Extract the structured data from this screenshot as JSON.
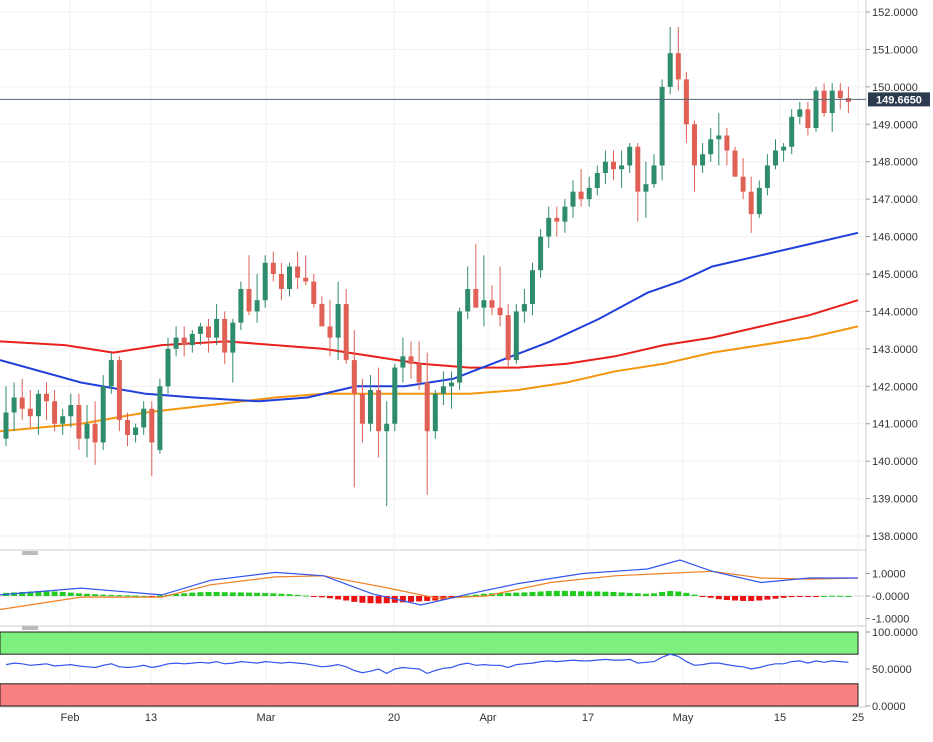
{
  "chart_data": [
    {
      "type": "candlestick",
      "pair_price_tag": "149.6650",
      "last_price": 149.665,
      "y_ticks": [
        "152.0000",
        "151.0000",
        "150.0000",
        "149.0000",
        "148.0000",
        "147.0000",
        "146.0000",
        "145.0000",
        "144.0000",
        "143.0000",
        "142.0000",
        "141.0000",
        "140.0000",
        "139.0000",
        "138.0000"
      ],
      "ylim": [
        137.6,
        152.2
      ],
      "x_ticks": [
        "Feb",
        "13",
        "Mar",
        "20",
        "Apr",
        "17",
        "May",
        "15",
        "25"
      ],
      "colors": {
        "up": "#2e8b6b",
        "down": "#e06055",
        "ma_blue": "#1f3fdc",
        "ma_red": "#e8201c",
        "ma_orange": "#f5960f"
      },
      "candles": [
        [
          140.6,
          142.0,
          140.4,
          141.3
        ],
        [
          141.3,
          142.1,
          140.8,
          141.7
        ],
        [
          141.7,
          142.2,
          141.1,
          141.4
        ],
        [
          141.4,
          141.9,
          140.9,
          141.2
        ],
        [
          141.2,
          141.9,
          140.7,
          141.8
        ],
        [
          141.8,
          142.1,
          141.1,
          141.6
        ],
        [
          141.6,
          141.9,
          140.8,
          141.0
        ],
        [
          141.0,
          141.4,
          140.7,
          141.2
        ],
        [
          141.2,
          141.8,
          140.9,
          141.5
        ],
        [
          141.5,
          141.8,
          140.3,
          140.6
        ],
        [
          140.6,
          141.5,
          140.1,
          141.0
        ],
        [
          141.0,
          141.6,
          139.9,
          140.5
        ],
        [
          140.5,
          142.3,
          140.3,
          142.0
        ],
        [
          142.0,
          142.9,
          141.8,
          142.7
        ],
        [
          142.7,
          142.8,
          140.8,
          141.1
        ],
        [
          141.1,
          141.3,
          140.4,
          140.7
        ],
        [
          140.7,
          141.0,
          140.5,
          140.9
        ],
        [
          140.9,
          141.6,
          140.7,
          141.4
        ],
        [
          141.4,
          141.6,
          139.6,
          140.5
        ],
        [
          140.3,
          142.2,
          140.2,
          142.0
        ],
        [
          142.0,
          143.3,
          141.8,
          143.0
        ],
        [
          143.0,
          143.6,
          142.8,
          143.3
        ],
        [
          143.3,
          143.6,
          142.8,
          143.1
        ],
        [
          143.1,
          143.5,
          142.9,
          143.4
        ],
        [
          143.4,
          143.7,
          143.1,
          143.6
        ],
        [
          143.6,
          143.8,
          142.9,
          143.3
        ],
        [
          143.3,
          144.2,
          143.1,
          143.8
        ],
        [
          143.8,
          144.0,
          142.6,
          142.9
        ],
        [
          142.9,
          143.8,
          142.1,
          143.7
        ],
        [
          143.7,
          144.8,
          143.5,
          144.6
        ],
        [
          144.6,
          145.5,
          143.9,
          144.0
        ],
        [
          144.0,
          145.0,
          143.7,
          144.3
        ],
        [
          144.3,
          145.5,
          144.1,
          145.3
        ],
        [
          145.3,
          145.6,
          144.8,
          145.0
        ],
        [
          145.0,
          145.3,
          144.3,
          144.6
        ],
        [
          144.6,
          145.3,
          144.4,
          145.2
        ],
        [
          145.2,
          145.6,
          144.6,
          144.9
        ],
        [
          144.9,
          145.5,
          144.7,
          144.8
        ],
        [
          144.8,
          145.0,
          144.1,
          144.2
        ],
        [
          144.2,
          144.4,
          143.7,
          143.6
        ],
        [
          143.6,
          144.3,
          142.8,
          143.3
        ],
        [
          143.3,
          144.8,
          142.7,
          144.2
        ],
        [
          144.2,
          144.6,
          142.6,
          142.7
        ],
        [
          142.7,
          143.5,
          139.3,
          141.8
        ],
        [
          141.8,
          142.2,
          140.5,
          141.0
        ],
        [
          141.0,
          142.3,
          140.8,
          141.9
        ],
        [
          141.9,
          142.5,
          140.1,
          140.8
        ],
        [
          140.8,
          141.6,
          138.8,
          141.0
        ],
        [
          141.0,
          142.6,
          140.8,
          142.5
        ],
        [
          142.5,
          143.3,
          142.1,
          142.8
        ],
        [
          142.8,
          143.2,
          142.2,
          142.6
        ],
        [
          142.6,
          143.2,
          141.9,
          142.1
        ],
        [
          142.1,
          142.9,
          139.1,
          140.8
        ],
        [
          140.8,
          141.9,
          140.6,
          141.8
        ],
        [
          141.8,
          142.4,
          141.5,
          142.0
        ],
        [
          142.0,
          142.4,
          141.4,
          142.1
        ],
        [
          142.1,
          144.1,
          141.9,
          144.0
        ],
        [
          144.0,
          145.2,
          143.8,
          144.6
        ],
        [
          144.6,
          145.8,
          144.2,
          144.1
        ],
        [
          144.1,
          145.5,
          143.6,
          144.3
        ],
        [
          144.3,
          144.7,
          143.9,
          144.1
        ],
        [
          144.1,
          145.2,
          143.6,
          143.9
        ],
        [
          143.9,
          144.2,
          142.5,
          142.7
        ],
        [
          142.7,
          144.2,
          142.6,
          144.0
        ],
        [
          144.0,
          144.6,
          143.7,
          144.2
        ],
        [
          144.2,
          145.3,
          143.9,
          145.1
        ],
        [
          145.1,
          146.2,
          144.9,
          146.0
        ],
        [
          146.0,
          146.8,
          145.7,
          146.5
        ],
        [
          146.5,
          146.8,
          146.0,
          146.4
        ],
        [
          146.4,
          147.0,
          146.1,
          146.8
        ],
        [
          146.8,
          147.5,
          146.5,
          147.2
        ],
        [
          147.2,
          147.8,
          146.8,
          147.0
        ],
        [
          147.0,
          147.6,
          146.8,
          147.3
        ],
        [
          147.3,
          147.9,
          147.1,
          147.7
        ],
        [
          147.7,
          148.3,
          147.4,
          148.0
        ],
        [
          148.0,
          148.3,
          147.5,
          147.8
        ],
        [
          147.8,
          148.3,
          147.3,
          147.9
        ],
        [
          147.9,
          148.5,
          147.7,
          148.4
        ],
        [
          148.4,
          148.5,
          146.4,
          147.2
        ],
        [
          147.2,
          148.0,
          146.5,
          147.4
        ],
        [
          147.4,
          148.2,
          147.3,
          147.9
        ],
        [
          147.9,
          150.2,
          147.5,
          150.0
        ],
        [
          150.0,
          151.6,
          149.8,
          150.9
        ],
        [
          150.9,
          151.6,
          149.9,
          150.2
        ],
        [
          150.2,
          150.4,
          148.5,
          149.0
        ],
        [
          149.0,
          149.1,
          147.2,
          147.9
        ],
        [
          147.9,
          148.5,
          147.7,
          148.2
        ],
        [
          148.2,
          148.9,
          148.0,
          148.6
        ],
        [
          148.6,
          149.3,
          147.9,
          148.7
        ],
        [
          148.7,
          148.9,
          147.9,
          148.3
        ],
        [
          148.3,
          148.4,
          147.6,
          147.6
        ],
        [
          147.6,
          148.1,
          147.0,
          147.2
        ],
        [
          147.2,
          147.6,
          146.1,
          146.6
        ],
        [
          146.6,
          147.5,
          146.5,
          147.3
        ],
        [
          147.3,
          148.2,
          147.1,
          147.9
        ],
        [
          147.9,
          148.6,
          147.8,
          148.3
        ],
        [
          148.3,
          148.5,
          148.0,
          148.4
        ],
        [
          148.4,
          149.4,
          148.2,
          149.2
        ],
        [
          149.2,
          149.6,
          149.0,
          149.4
        ],
        [
          149.4,
          149.6,
          148.7,
          148.9
        ],
        [
          148.9,
          150.0,
          148.8,
          149.9
        ],
        [
          149.9,
          150.1,
          149.2,
          149.3
        ],
        [
          149.3,
          150.1,
          148.8,
          149.9
        ],
        [
          149.9,
          150.1,
          149.4,
          149.7
        ],
        [
          149.7,
          150.0,
          149.3,
          149.6
        ]
      ],
      "ma_blue": [
        [
          0,
          142.7
        ],
        [
          10,
          142.1
        ],
        [
          18,
          141.8
        ],
        [
          24,
          141.7
        ],
        [
          32,
          141.6
        ],
        [
          38,
          141.7
        ],
        [
          44,
          142.0
        ],
        [
          50,
          142.0
        ],
        [
          56,
          142.2
        ],
        [
          62,
          142.7
        ],
        [
          68,
          143.2
        ],
        [
          74,
          143.8
        ],
        [
          80,
          144.5
        ],
        [
          84,
          144.8
        ],
        [
          88,
          145.2
        ],
        [
          94,
          145.5
        ],
        [
          100,
          145.8
        ],
        [
          106,
          146.1
        ]
      ],
      "ma_red": [
        [
          0,
          143.2
        ],
        [
          8,
          143.1
        ],
        [
          14,
          142.9
        ],
        [
          20,
          143.1
        ],
        [
          28,
          143.2
        ],
        [
          34,
          143.1
        ],
        [
          40,
          143.0
        ],
        [
          46,
          142.8
        ],
        [
          52,
          142.6
        ],
        [
          58,
          142.5
        ],
        [
          64,
          142.5
        ],
        [
          70,
          142.6
        ],
        [
          76,
          142.8
        ],
        [
          82,
          143.1
        ],
        [
          88,
          143.3
        ],
        [
          94,
          143.6
        ],
        [
          100,
          143.9
        ],
        [
          106,
          144.3
        ]
      ],
      "ma_orange": [
        [
          0,
          140.8
        ],
        [
          10,
          141.0
        ],
        [
          18,
          141.3
        ],
        [
          26,
          141.5
        ],
        [
          34,
          141.7
        ],
        [
          40,
          141.8
        ],
        [
          50,
          141.8
        ],
        [
          58,
          141.8
        ],
        [
          64,
          141.9
        ],
        [
          70,
          142.1
        ],
        [
          76,
          142.4
        ],
        [
          82,
          142.6
        ],
        [
          88,
          142.9
        ],
        [
          94,
          143.1
        ],
        [
          100,
          143.3
        ],
        [
          106,
          143.6
        ]
      ]
    },
    {
      "type": "macd",
      "y_ticks": [
        "1.0000",
        "-0.0000",
        "-1.0000"
      ],
      "ylim": [
        -1.2,
        1.6
      ],
      "histogram": [
        0.14,
        0.16,
        0.18,
        0.2,
        0.22,
        0.22,
        0.2,
        0.18,
        0.15,
        0.12,
        0.1,
        0.08,
        0.06,
        0.05,
        0.04,
        0.03,
        0.02,
        0.0,
        -0.02,
        0.02,
        0.05,
        0.09,
        0.12,
        0.15,
        0.17,
        0.18,
        0.18,
        0.17,
        0.16,
        0.16,
        0.15,
        0.14,
        0.13,
        0.12,
        0.1,
        0.08,
        0.05,
        0.02,
        -0.02,
        -0.06,
        -0.1,
        -0.15,
        -0.2,
        -0.26,
        -0.3,
        -0.32,
        -0.33,
        -0.32,
        -0.3,
        -0.28,
        -0.26,
        -0.24,
        -0.22,
        -0.2,
        -0.16,
        -0.1,
        -0.04,
        0.02,
        0.06,
        0.1,
        0.12,
        0.13,
        0.14,
        0.15,
        0.16,
        0.18,
        0.2,
        0.22,
        0.23,
        0.23,
        0.22,
        0.21,
        0.2,
        0.2,
        0.19,
        0.18,
        0.16,
        0.14,
        0.12,
        0.1,
        0.12,
        0.18,
        0.22,
        0.2,
        0.14,
        0.06,
        -0.02,
        -0.08,
        -0.14,
        -0.18,
        -0.2,
        -0.22,
        -0.22,
        -0.2,
        -0.16,
        -0.12,
        -0.08,
        -0.05,
        -0.03,
        -0.02,
        -0.01,
        0.0,
        0.01,
        0.01,
        0.0
      ],
      "line_blue": [
        [
          0,
          0.05
        ],
        [
          10,
          0.35
        ],
        [
          20,
          0.05
        ],
        [
          26,
          0.7
        ],
        [
          34,
          1.05
        ],
        [
          40,
          0.9
        ],
        [
          46,
          0.1
        ],
        [
          52,
          -0.4
        ],
        [
          58,
          0.1
        ],
        [
          64,
          0.55
        ],
        [
          72,
          1.0
        ],
        [
          80,
          1.2
        ],
        [
          84,
          1.6
        ],
        [
          88,
          1.1
        ],
        [
          94,
          0.6
        ],
        [
          100,
          0.8
        ],
        [
          106,
          0.8
        ]
      ],
      "line_orange": [
        [
          0,
          -0.6
        ],
        [
          10,
          -0.05
        ],
        [
          20,
          -0.05
        ],
        [
          26,
          0.5
        ],
        [
          34,
          0.85
        ],
        [
          40,
          0.9
        ],
        [
          48,
          0.35
        ],
        [
          54,
          -0.1
        ],
        [
          60,
          0.0
        ],
        [
          68,
          0.6
        ],
        [
          76,
          0.9
        ],
        [
          82,
          1.0
        ],
        [
          88,
          1.1
        ],
        [
          94,
          0.8
        ],
        [
          100,
          0.75
        ],
        [
          106,
          0.8
        ]
      ],
      "colors": {
        "positive": "#22cc22",
        "negative": "#ee1111",
        "line_blue": "#3355ee",
        "line_orange": "#f08020"
      }
    },
    {
      "type": "rsi",
      "y_ticks": [
        "100.0000",
        "50.0000",
        "0.0000"
      ],
      "ylim": [
        0,
        100
      ],
      "overbought_band": [
        70,
        100
      ],
      "oversold_band": [
        0,
        30
      ],
      "values": [
        56,
        58,
        57,
        55,
        56,
        57,
        54,
        55,
        56,
        54,
        53,
        52,
        55,
        57,
        53,
        52,
        53,
        55,
        52,
        54,
        57,
        58,
        57,
        58,
        59,
        58,
        60,
        57,
        58,
        60,
        59,
        58,
        60,
        59,
        58,
        59,
        58,
        57,
        55,
        53,
        54,
        56,
        53,
        48,
        45,
        47,
        50,
        44,
        50,
        52,
        51,
        50,
        44,
        48,
        51,
        52,
        56,
        58,
        55,
        56,
        55,
        55,
        52,
        56,
        57,
        58,
        60,
        61,
        60,
        61,
        62,
        61,
        61,
        62,
        63,
        62,
        62,
        63,
        58,
        59,
        60,
        66,
        70,
        67,
        60,
        55,
        56,
        58,
        58,
        56,
        54,
        53,
        50,
        52,
        55,
        57,
        57,
        60,
        61,
        58,
        61,
        59,
        61,
        60,
        59
      ],
      "colors": {
        "line": "#3355ee",
        "overbought": "#7ef07e",
        "oversold": "#f98080"
      }
    }
  ]
}
